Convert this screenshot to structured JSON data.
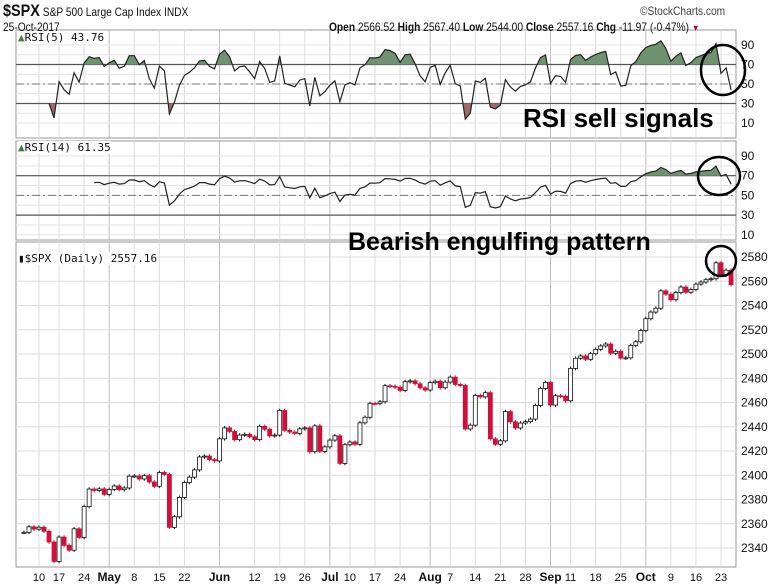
{
  "header": {
    "symbol": "$SPX",
    "name": "S&P 500 Large Cap Index",
    "exchange": "INDX",
    "date": "25-Oct-2017",
    "brand": "©StockCharts.com",
    "open_label": "Open",
    "open": "2566.52",
    "high_label": "High",
    "high": "2567.40",
    "low_label": "Low",
    "low": "2544.00",
    "close_label": "Close",
    "close": "2557.16",
    "chg_label": "Chg",
    "chg": "-11.97 (-0.47%)",
    "down_arrow": "▼",
    "down_color": "#a0102a"
  },
  "panels": {
    "rsi5_label": "RSI(5) 43.76",
    "rsi14_label": "RSI(14) 61.35",
    "price_label": "$SPX (Daily) 2557.16"
  },
  "annotations": {
    "rsi_note": "RSI sell signals",
    "price_note": "Bearish engulfing pattern"
  },
  "colors": {
    "up_fill": "#ffffff",
    "down_fill": "#d0103a",
    "overbought": "#6f9370",
    "oversold": "#a06a6a"
  },
  "chart_data": {
    "type": "candlestick",
    "title": "$SPX (Daily)",
    "ylim": [
      2330,
      2590
    ],
    "yticks": [
      "2340",
      "2360",
      "2380",
      "2400",
      "2420",
      "2440",
      "2460",
      "2480",
      "2500",
      "2520",
      "2540",
      "2560",
      "2580"
    ],
    "rsi_ticks": [
      "90",
      "70",
      "50",
      "30",
      "10"
    ],
    "xticks": [
      {
        "label": "10",
        "date": "04-10",
        "month": false
      },
      {
        "label": "17",
        "date": "04-17",
        "month": false
      },
      {
        "label": "24",
        "date": "04-24",
        "month": false
      },
      {
        "label": "May",
        "date": "05-01",
        "month": true
      },
      {
        "label": "8",
        "date": "05-08",
        "month": false
      },
      {
        "label": "15",
        "date": "05-15",
        "month": false
      },
      {
        "label": "22",
        "date": "05-22",
        "month": false
      },
      {
        "label": "Jun",
        "date": "06-01",
        "month": true
      },
      {
        "label": "12",
        "date": "06-12",
        "month": false
      },
      {
        "label": "19",
        "date": "06-19",
        "month": false
      },
      {
        "label": "26",
        "date": "06-26",
        "month": false
      },
      {
        "label": "Jul",
        "date": "07-03",
        "month": true
      },
      {
        "label": "10",
        "date": "07-10",
        "month": false
      },
      {
        "label": "17",
        "date": "07-17",
        "month": false
      },
      {
        "label": "24",
        "date": "07-24",
        "month": false
      },
      {
        "label": "Aug",
        "date": "08-01",
        "month": true
      },
      {
        "label": "7",
        "date": "08-07",
        "month": false
      },
      {
        "label": "14",
        "date": "08-14",
        "month": false
      },
      {
        "label": "21",
        "date": "08-21",
        "month": false
      },
      {
        "label": "28",
        "date": "08-28",
        "month": false
      },
      {
        "label": "Sep",
        "date": "09-05",
        "month": true
      },
      {
        "label": "11",
        "date": "09-11",
        "month": false
      },
      {
        "label": "18",
        "date": "09-18",
        "month": false
      },
      {
        "label": "25",
        "date": "09-25",
        "month": false
      },
      {
        "label": "Oct",
        "date": "10-02",
        "month": true
      },
      {
        "label": "9",
        "date": "10-09",
        "month": false
      },
      {
        "label": "16",
        "date": "10-16",
        "month": false
      },
      {
        "label": "23",
        "date": "10-23",
        "month": false
      }
    ],
    "dates": [
      "04-05",
      "04-06",
      "04-07",
      "04-10",
      "04-11",
      "04-12",
      "04-13",
      "04-17",
      "04-18",
      "04-19",
      "04-20",
      "04-21",
      "04-24",
      "04-25",
      "04-26",
      "04-27",
      "04-28",
      "05-01",
      "05-02",
      "05-03",
      "05-04",
      "05-05",
      "05-08",
      "05-09",
      "05-10",
      "05-11",
      "05-12",
      "05-15",
      "05-16",
      "05-17",
      "05-18",
      "05-19",
      "05-22",
      "05-23",
      "05-24",
      "05-25",
      "05-26",
      "05-30",
      "05-31",
      "06-01",
      "06-02",
      "06-05",
      "06-06",
      "06-07",
      "06-08",
      "06-09",
      "06-12",
      "06-13",
      "06-14",
      "06-15",
      "06-16",
      "06-19",
      "06-20",
      "06-21",
      "06-22",
      "06-23",
      "06-26",
      "06-27",
      "06-28",
      "06-29",
      "06-30",
      "07-03",
      "07-05",
      "07-06",
      "07-07",
      "07-10",
      "07-11",
      "07-12",
      "07-13",
      "07-14",
      "07-17",
      "07-18",
      "07-19",
      "07-20",
      "07-21",
      "07-24",
      "07-25",
      "07-26",
      "07-27",
      "07-28",
      "07-31",
      "08-01",
      "08-02",
      "08-03",
      "08-04",
      "08-07",
      "08-08",
      "08-09",
      "08-10",
      "08-11",
      "08-14",
      "08-15",
      "08-16",
      "08-17",
      "08-18",
      "08-21",
      "08-22",
      "08-23",
      "08-24",
      "08-25",
      "08-28",
      "08-29",
      "08-30",
      "08-31",
      "09-01",
      "09-05",
      "09-06",
      "09-07",
      "09-08",
      "09-11",
      "09-12",
      "09-13",
      "09-14",
      "09-15",
      "09-18",
      "09-19",
      "09-20",
      "09-21",
      "09-22",
      "09-25",
      "09-26",
      "09-27",
      "09-28",
      "09-29",
      "10-02",
      "10-03",
      "10-04",
      "10-05",
      "10-06",
      "10-09",
      "10-10",
      "10-11",
      "10-12",
      "10-13",
      "10-16",
      "10-17",
      "10-18",
      "10-19",
      "10-20",
      "10-23",
      "10-24",
      "10-25"
    ],
    "close": [
      2352.95,
      2357.49,
      2355.54,
      2357.16,
      2353.78,
      2344.93,
      2328.95,
      2349.01,
      2342.19,
      2338.17,
      2355.84,
      2348.69,
      2374.15,
      2388.61,
      2387.45,
      2388.77,
      2384.2,
      2388.33,
      2391.17,
      2388.13,
      2389.52,
      2399.29,
      2399.38,
      2396.92,
      2399.63,
      2394.44,
      2390.9,
      2402.32,
      2400.67,
      2357.03,
      2365.72,
      2381.73,
      2394.02,
      2398.42,
      2404.39,
      2415.07,
      2415.82,
      2412.91,
      2411.8,
      2430.06,
      2439.07,
      2436.1,
      2429.33,
      2433.14,
      2433.79,
      2431.77,
      2429.39,
      2440.35,
      2437.92,
      2432.46,
      2433.15,
      2453.46,
      2437.03,
      2435.61,
      2434.5,
      2438.3,
      2439.07,
      2419.38,
      2440.69,
      2419.7,
      2423.41,
      2429.01,
      2432.54,
      2409.75,
      2425.18,
      2427.43,
      2425.53,
      2443.25,
      2447.83,
      2459.27,
      2459.14,
      2460.61,
      2473.83,
      2473.45,
      2472.54,
      2469.91,
      2477.13,
      2477.83,
      2475.42,
      2472.1,
      2470.3,
      2476.35,
      2477.57,
      2472.16,
      2476.83,
      2480.91,
      2474.92,
      2474.02,
      2438.21,
      2441.32,
      2465.84,
      2464.61,
      2468.11,
      2430.01,
      2425.55,
      2428.37,
      2452.51,
      2444.04,
      2438.97,
      2443.05,
      2444.24,
      2446.3,
      2457.59,
      2471.65,
      2476.55,
      2457.85,
      2465.54,
      2465.1,
      2461.43,
      2488.11,
      2496.48,
      2498.37,
      2495.62,
      2500.23,
      2503.87,
      2506.65,
      2508.24,
      2500.6,
      2502.22,
      2496.66,
      2496.84,
      2507.04,
      2510.06,
      2519.36,
      2529.12,
      2534.58,
      2537.74,
      2552.07,
      2549.33,
      2544.73,
      2550.64,
      2555.24,
      2550.93,
      2553.17,
      2557.64,
      2559.36,
      2561.26,
      2562.1,
      2575.21,
      2564.98,
      2569.13,
      2557.16
    ]
  }
}
